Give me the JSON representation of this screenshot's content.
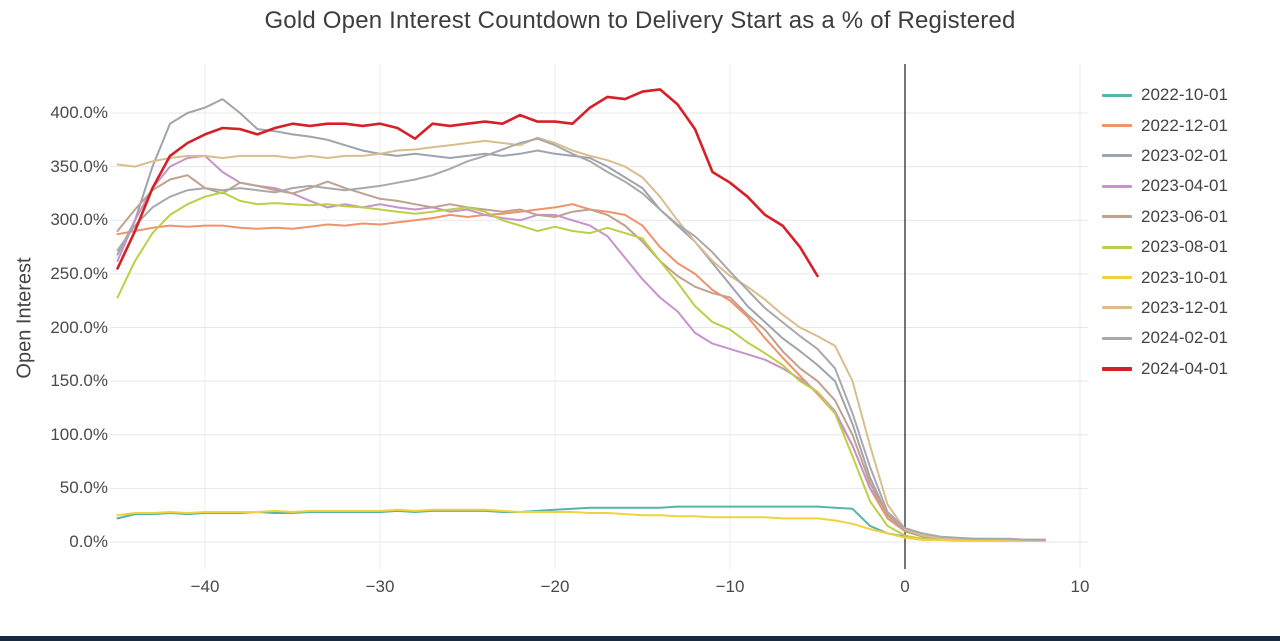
{
  "chart_data": {
    "type": "line",
    "title": "Gold Open Interest Countdown to Delivery Start as a % of Registered",
    "xlabel": "",
    "ylabel": "Open Interest",
    "xlim": [
      -45.6,
      10.4
    ],
    "ylim": [
      0,
      445
    ],
    "grid": true,
    "legend_position": "right",
    "zero_vline_x": 0,
    "xticks": {
      "values": [
        -40,
        -30,
        -20,
        -10,
        0,
        10
      ],
      "labels": [
        "−40",
        "−30",
        "−20",
        "−10",
        "0",
        "10"
      ]
    },
    "yticks": {
      "values": [
        0,
        50,
        100,
        150,
        200,
        250,
        300,
        350,
        400
      ],
      "labels": [
        "0.0%",
        "50.0%",
        "100.0%",
        "150.0%",
        "200.0%",
        "250.0%",
        "300.0%",
        "350.0%",
        "400.0%"
      ]
    },
    "x": [
      -45,
      -44,
      -43,
      -42,
      -41,
      -40,
      -39,
      -38,
      -37,
      -36,
      -35,
      -34,
      -33,
      -32,
      -31,
      -30,
      -29,
      -28,
      -27,
      -26,
      -25,
      -24,
      -23,
      -22,
      -21,
      -20,
      -19,
      -18,
      -17,
      -16,
      -15,
      -14,
      -13,
      -12,
      -11,
      -10,
      -9,
      -8,
      -7,
      -6,
      -5,
      -4,
      -3,
      -2,
      -1,
      0,
      1,
      2,
      3,
      4,
      5,
      6,
      7,
      8
    ],
    "series": [
      {
        "name": "2022-10-01",
        "color": "#56b5a6",
        "lw": 2,
        "y": [
          22,
          26,
          26,
          27,
          26,
          27,
          27,
          27,
          28,
          27,
          27,
          28,
          28,
          28,
          28,
          28,
          29,
          28,
          29,
          29,
          29,
          29,
          28,
          28,
          29,
          30,
          31,
          32,
          32,
          32,
          32,
          32,
          33,
          33,
          33,
          33,
          33,
          33,
          33,
          33,
          33,
          32,
          31,
          15,
          8,
          5,
          3,
          2,
          2,
          2,
          2,
          2,
          2,
          2
        ]
      },
      {
        "name": "2022-12-01",
        "color": "#f0936b",
        "lw": 2,
        "y": [
          287,
          290,
          293,
          295,
          294,
          295,
          295,
          293,
          292,
          293,
          292,
          294,
          296,
          295,
          297,
          296,
          298,
          300,
          302,
          305,
          303,
          305,
          306,
          308,
          310,
          312,
          315,
          310,
          308,
          305,
          295,
          275,
          260,
          250,
          235,
          225,
          210,
          190,
          172,
          155,
          138,
          120,
          90,
          50,
          22,
          10,
          5,
          3,
          2,
          2,
          2,
          2,
          2,
          2
        ]
      },
      {
        "name": "2023-02-01",
        "color": "#9fa3ab",
        "lw": 2,
        "y": [
          268,
          300,
          350,
          390,
          400,
          405,
          413,
          400,
          385,
          383,
          380,
          378,
          375,
          370,
          365,
          362,
          360,
          362,
          360,
          358,
          360,
          362,
          360,
          362,
          365,
          362,
          360,
          358,
          350,
          340,
          330,
          310,
          295,
          280,
          260,
          240,
          220,
          205,
          190,
          178,
          165,
          150,
          110,
          60,
          25,
          12,
          6,
          4,
          3,
          3,
          2,
          2,
          2,
          2
        ]
      },
      {
        "name": "2023-04-01",
        "color": "#c893c8",
        "lw": 2,
        "y": [
          262,
          300,
          330,
          350,
          358,
          360,
          345,
          335,
          332,
          330,
          325,
          318,
          312,
          315,
          312,
          315,
          312,
          310,
          312,
          308,
          310,
          305,
          302,
          300,
          305,
          305,
          300,
          295,
          285,
          265,
          245,
          228,
          215,
          195,
          185,
          180,
          175,
          170,
          162,
          152,
          140,
          122,
          90,
          50,
          28,
          12,
          5,
          3,
          2,
          2,
          2,
          2,
          2,
          2
        ]
      },
      {
        "name": "2023-06-01",
        "color": "#c0a18e",
        "lw": 2,
        "y": [
          290,
          310,
          328,
          338,
          342,
          330,
          325,
          335,
          332,
          328,
          325,
          330,
          336,
          330,
          325,
          320,
          318,
          315,
          312,
          315,
          312,
          310,
          308,
          310,
          305,
          303,
          308,
          310,
          305,
          295,
          280,
          262,
          248,
          238,
          232,
          228,
          212,
          198,
          178,
          162,
          150,
          132,
          100,
          55,
          25,
          10,
          5,
          3,
          3,
          2,
          2,
          2,
          2,
          2
        ]
      },
      {
        "name": "2023-08-01",
        "color": "#bccf46",
        "lw": 2,
        "y": [
          228,
          262,
          288,
          305,
          315,
          322,
          326,
          318,
          315,
          316,
          315,
          314,
          315,
          313,
          312,
          310,
          308,
          306,
          308,
          310,
          312,
          308,
          300,
          295,
          290,
          294,
          290,
          288,
          293,
          288,
          283,
          262,
          242,
          220,
          205,
          198,
          186,
          176,
          165,
          150,
          140,
          120,
          80,
          38,
          15,
          6,
          3,
          2,
          2,
          2,
          1,
          1,
          1,
          1
        ]
      },
      {
        "name": "2023-10-01",
        "color": "#f2d13e",
        "lw": 2,
        "y": [
          25,
          27,
          27,
          28,
          27,
          28,
          28,
          28,
          28,
          29,
          28,
          29,
          29,
          29,
          29,
          29,
          30,
          29,
          30,
          30,
          30,
          30,
          29,
          28,
          28,
          28,
          28,
          27,
          27,
          26,
          25,
          25,
          24,
          24,
          23,
          23,
          23,
          23,
          22,
          22,
          22,
          20,
          17,
          12,
          8,
          4,
          2,
          2,
          1,
          1,
          1,
          1,
          1,
          1
        ]
      },
      {
        "name": "2023-12-01",
        "color": "#dbbd8d",
        "lw": 2,
        "y": [
          352,
          350,
          355,
          358,
          360,
          360,
          358,
          360,
          360,
          360,
          358,
          360,
          358,
          360,
          360,
          362,
          365,
          366,
          368,
          370,
          372,
          374,
          372,
          370,
          377,
          372,
          365,
          360,
          356,
          350,
          340,
          322,
          300,
          280,
          262,
          248,
          238,
          226,
          212,
          200,
          192,
          183,
          150,
          90,
          35,
          12,
          6,
          4,
          3,
          3,
          3,
          2,
          2,
          2
        ]
      },
      {
        "name": "2024-02-01",
        "color": "#a9a9ab",
        "lw": 2,
        "y": [
          272,
          295,
          312,
          322,
          328,
          330,
          328,
          330,
          328,
          326,
          330,
          332,
          330,
          328,
          330,
          332,
          335,
          338,
          342,
          348,
          355,
          360,
          366,
          372,
          376,
          370,
          362,
          355,
          345,
          336,
          325,
          310,
          296,
          285,
          270,
          252,
          235,
          218,
          205,
          192,
          180,
          162,
          120,
          70,
          28,
          13,
          8,
          5,
          4,
          3,
          3,
          3,
          2,
          2
        ]
      },
      {
        "name": "2024-04-01",
        "color": "#d62027",
        "lw": 2.6,
        "y": [
          255,
          290,
          330,
          360,
          372,
          380,
          386,
          385,
          380,
          386,
          390,
          388,
          390,
          390,
          388,
          390,
          386,
          376,
          390,
          388,
          390,
          392,
          390,
          398,
          392,
          392,
          390,
          405,
          415,
          413,
          420,
          422,
          408,
          385,
          345,
          335,
          322,
          305,
          295,
          275,
          248
        ]
      }
    ]
  }
}
